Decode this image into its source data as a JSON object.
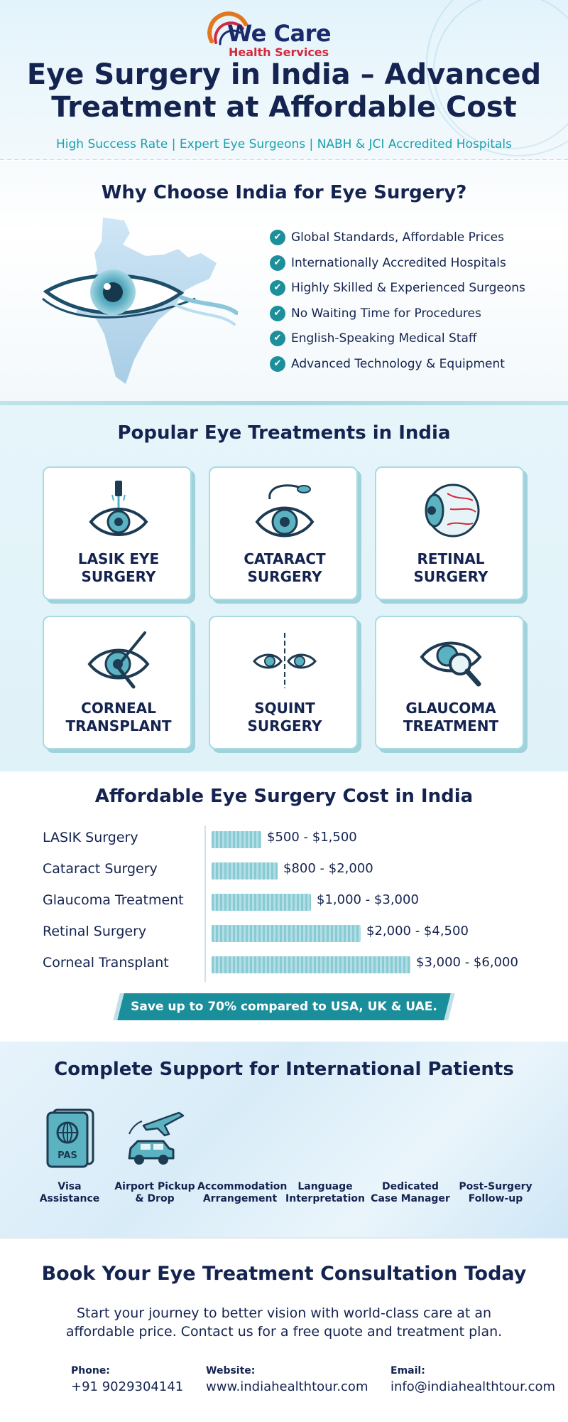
{
  "brand": {
    "name": "We Care",
    "sub": "Health Services"
  },
  "hero": {
    "title_line1": "Eye Surgery in India – Advanced",
    "title_line2": "Treatment at Affordable Cost",
    "tagline": "High Success Rate | Expert Eye Surgeons | NABH & JCI Accredited Hospitals"
  },
  "why": {
    "title": "Why Choose India for Eye Surgery?",
    "items": [
      "Global Standards, Affordable Prices",
      "Internationally Accredited Hospitals",
      "Highly Skilled & Experienced Surgeons",
      "No Waiting Time for Procedures",
      "English-Speaking Medical Staff",
      "Advanced Technology & Equipment"
    ]
  },
  "treatments": {
    "title": "Popular Eye Treatments in India",
    "cards": [
      {
        "line1": "LASIK EYE",
        "line2": "SURGERY",
        "icon": "laser-eye-icon"
      },
      {
        "line1": "CATARACT",
        "line2": "SURGERY",
        "icon": "cataract-eye-icon"
      },
      {
        "line1": "RETINAL",
        "line2": "SURGERY",
        "icon": "eyeball-retina-icon"
      },
      {
        "line1": "CORNEAL",
        "line2": "TRANSPLANT",
        "icon": "scalpel-eye-icon"
      },
      {
        "line1": "SQUINT",
        "line2": "SURGERY",
        "icon": "crossed-eyes-icon"
      },
      {
        "line1": "GLAUCOMA",
        "line2": "TREATMENT",
        "icon": "magnifier-eye-icon"
      }
    ]
  },
  "cost": {
    "title": "Affordable Eye Surgery Cost in India",
    "rows": [
      {
        "name": "LASIK Surgery",
        "range": "$500 - $1,500",
        "min": 500,
        "max": 1500
      },
      {
        "name": "Cataract Surgery",
        "range": "$800 - $2,000",
        "min": 800,
        "max": 2000
      },
      {
        "name": "Glaucoma Treatment",
        "range": "$1,000 - $3,000",
        "min": 1000,
        "max": 3000
      },
      {
        "name": "Retinal Surgery",
        "range": "$2,000 - $4,500",
        "min": 2000,
        "max": 4500
      },
      {
        "name": "Corneal Transplant",
        "range": "$3,000 - $6,000",
        "min": 3000,
        "max": 6000
      }
    ],
    "banner": "Save up to 70% compared to USA, UK & UAE."
  },
  "support": {
    "title": "Complete Support for International Patients",
    "passport_text": "PAS",
    "items": [
      {
        "line1": "Visa",
        "line2": "Assistance"
      },
      {
        "line1": "Airport Pickup",
        "line2": "& Drop"
      },
      {
        "line1": "Accommodation",
        "line2": "Arrangement"
      },
      {
        "line1": "Language",
        "line2": "Interpretation"
      },
      {
        "line1": "Dedicated",
        "line2": "Case Manager"
      },
      {
        "line1": "Post-Surgery",
        "line2": "Follow-up"
      }
    ]
  },
  "cta": {
    "title": "Book Your Eye Treatment Consultation Today",
    "line1": "Start your journey to better vision with world-class care at an",
    "line2": "affordable price. Contact us for a free quote and treatment plan.",
    "phone_label": "Phone:",
    "phone": "+91 9029304141",
    "website_label": "Website:",
    "website": "www.indiahealthtour.com",
    "email_label": "Email:",
    "email": "info@indiahealthtour.com"
  },
  "colors": {
    "navy": "#14234f",
    "teal": "#1b8e9c",
    "brand_red": "#d4283c",
    "tagline_teal": "#1aa0ae"
  }
}
